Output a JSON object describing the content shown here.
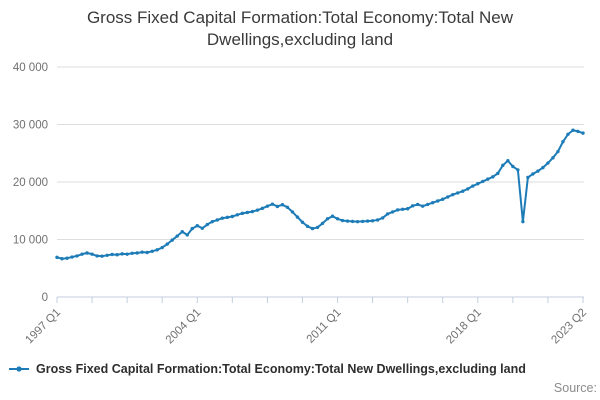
{
  "title": "Gross Fixed Capital Formation:Total Economy:Total New Dwellings,excluding land",
  "legend": {
    "label": "Gross Fixed Capital Formation:Total Economy:Total New Dwellings,excluding land",
    "symbol": "line-with-circle-marker"
  },
  "footer": {
    "source_label": "Source:"
  },
  "colors": {
    "line": "#1d7cb8",
    "grid": "#dedede",
    "axis": "#c4cede",
    "tick_text": "#707070",
    "title_text": "#3a3a3a",
    "legend_text": "#2e2e2e",
    "source_text": "#8c8c8c",
    "background": "#ffffff"
  },
  "chart_data": {
    "type": "line",
    "title": "Gross Fixed Capital Formation:Total Economy:Total New Dwellings,excluding land",
    "xlabel": "",
    "ylabel": "",
    "frequency": "quarterly",
    "x_start": "1997 Q1",
    "x_end": "2023 Q2",
    "x_major_ticks": [
      {
        "index": 0,
        "label": "1997 Q1"
      },
      {
        "index": 28,
        "label": "2004 Q1"
      },
      {
        "index": 56,
        "label": "2011 Q1"
      },
      {
        "index": 84,
        "label": "2018 Q1"
      },
      {
        "index": 105,
        "label": "2023 Q2"
      }
    ],
    "x_minor_tick_every_points": 7,
    "ylim": [
      0,
      40000
    ],
    "y_ticks": [
      0,
      10000,
      20000,
      30000,
      40000
    ],
    "y_tick_labels": [
      "0",
      "10 000",
      "20 000",
      "30 000",
      "40 000"
    ],
    "grid": "horizontal-only",
    "legend_position": "bottom-left",
    "marker": "circle",
    "series": [
      {
        "name": "Gross Fixed Capital Formation:Total Economy:Total New Dwellings,excluding land",
        "values": [
          6900,
          6650,
          6750,
          6950,
          7150,
          7450,
          7650,
          7450,
          7150,
          7100,
          7250,
          7400,
          7350,
          7500,
          7450,
          7600,
          7650,
          7800,
          7750,
          7950,
          8200,
          8600,
          9200,
          9900,
          10600,
          11350,
          10800,
          11900,
          12400,
          11950,
          12600,
          13100,
          13400,
          13700,
          13850,
          14000,
          14300,
          14550,
          14700,
          14850,
          15100,
          15420,
          15800,
          16150,
          15750,
          16050,
          15600,
          14800,
          13900,
          13000,
          12300,
          11900,
          12100,
          12800,
          13600,
          14050,
          13600,
          13300,
          13200,
          13150,
          13100,
          13150,
          13200,
          13250,
          13400,
          13750,
          14450,
          14800,
          15150,
          15250,
          15350,
          15850,
          16100,
          15800,
          16100,
          16400,
          16700,
          17000,
          17400,
          17800,
          18100,
          18400,
          18800,
          19300,
          19700,
          20100,
          20500,
          20900,
          21500,
          22900,
          23700,
          22700,
          22100,
          13100,
          20800,
          21400,
          21900,
          22500,
          23300,
          24200,
          25300,
          27000,
          28300,
          29000,
          28800,
          28500
        ]
      }
    ]
  }
}
